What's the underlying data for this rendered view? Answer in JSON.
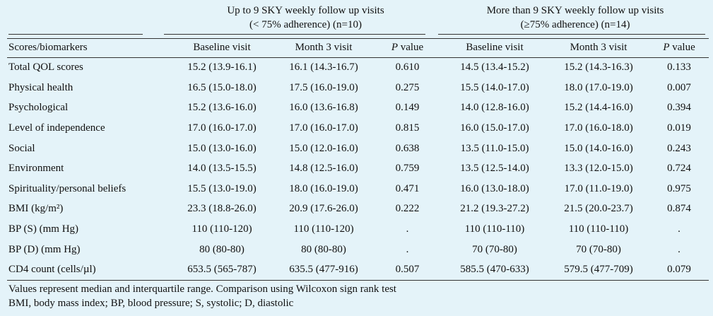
{
  "table": {
    "group1": {
      "line1": "Up to 9 SKY weekly follow up visits",
      "line2": "(< 75% adherence) (n=10)"
    },
    "group2": {
      "line1": "More than 9 SKY weekly follow up visits",
      "line2": "(≥75% adherence) (n=14)"
    },
    "columns": {
      "label": "Scores/biomarkers",
      "baseline": "Baseline visit",
      "month3": "Month 3 visit",
      "p_italic": "P",
      "p_rest": " value"
    },
    "rows": [
      {
        "label": "Total QOL scores",
        "g1_base": "15.2 (13.9-16.1)",
        "g1_m3": "16.1 (14.3-16.7)",
        "g1_p": "0.610",
        "g2_base": "14.5 (13.4-15.2)",
        "g2_m3": "15.2 (14.3-16.3)",
        "g2_p": "0.133"
      },
      {
        "label": "Physical health",
        "g1_base": "16.5 (15.0-18.0)",
        "g1_m3": "17.5 (16.0-19.0)",
        "g1_p": "0.275",
        "g2_base": "15.5 (14.0-17.0)",
        "g2_m3": "18.0 (17.0-19.0)",
        "g2_p": "0.007"
      },
      {
        "label": "Psychological",
        "g1_base": "15.2 (13.6-16.0)",
        "g1_m3": "16.0 (13.6-16.8)",
        "g1_p": "0.149",
        "g2_base": "14.0 (12.8-16.0)",
        "g2_m3": "15.2 (14.4-16.0)",
        "g2_p": "0.394"
      },
      {
        "label": "Level of independence",
        "g1_base": "17.0 (16.0-17.0)",
        "g1_m3": "17.0 (16.0-17.0)",
        "g1_p": "0.815",
        "g2_base": "16.0 (15.0-17.0)",
        "g2_m3": "17.0 (16.0-18.0)",
        "g2_p": "0.019"
      },
      {
        "label": "Social",
        "g1_base": "15.0 (13.0-16.0)",
        "g1_m3": "15.0 (12.0-16.0)",
        "g1_p": "0.638",
        "g2_base": "13.5 (11.0-15.0)",
        "g2_m3": "15.0 (14.0-16.0)",
        "g2_p": "0.243"
      },
      {
        "label": "Environment",
        "g1_base": "14.0 (13.5-15.5)",
        "g1_m3": "14.8 (12.5-16.0)",
        "g1_p": "0.759",
        "g2_base": "13.5 (12.5-14.0)",
        "g2_m3": "13.3 (12.0-15.0)",
        "g2_p": "0.724"
      },
      {
        "label": "Spirituality/personal beliefs",
        "g1_base": "15.5 (13.0-19.0)",
        "g1_m3": "18.0 (16.0-19.0)",
        "g1_p": "0.471",
        "g2_base": "16.0 (13.0-18.0)",
        "g2_m3": "17.0 (11.0-19.0)",
        "g2_p": "0.975"
      },
      {
        "label": "BMI (kg/m²)",
        "g1_base": "23.3 (18.8-26.0)",
        "g1_m3": "20.9 (17.6-26.0)",
        "g1_p": "0.222",
        "g2_base": "21.2 (19.3-27.2)",
        "g2_m3": "21.5 (20.0-23.7)",
        "g2_p": "0.874"
      },
      {
        "label": "BP (S) (mm Hg)",
        "g1_base": "110 (110-120)",
        "g1_m3": "110 (110-120)",
        "g1_p": ".",
        "g2_base": "110 (110-110)",
        "g2_m3": "110 (110-110)",
        "g2_p": "."
      },
      {
        "label": "BP (D) (mm Hg)",
        "g1_base": "80 (80-80)",
        "g1_m3": "80 (80-80)",
        "g1_p": ".",
        "g2_base": "70 (70-80)",
        "g2_m3": "70 (70-80)",
        "g2_p": "."
      },
      {
        "label": "CD4 count (cells/µl)",
        "g1_base": "653.5 (565-787)",
        "g1_m3": "635.5 (477-916)",
        "g1_p": "0.507",
        "g2_base": "585.5 (470-633)",
        "g2_m3": "579.5 (477-709)",
        "g2_p": "0.079"
      }
    ]
  },
  "footnotes": {
    "line1": "Values represent median and interquartile range. Comparison using Wilcoxon sign rank test",
    "line2": "BMI, body mass index; BP, blood pressure; S, systolic; D, diastolic"
  }
}
